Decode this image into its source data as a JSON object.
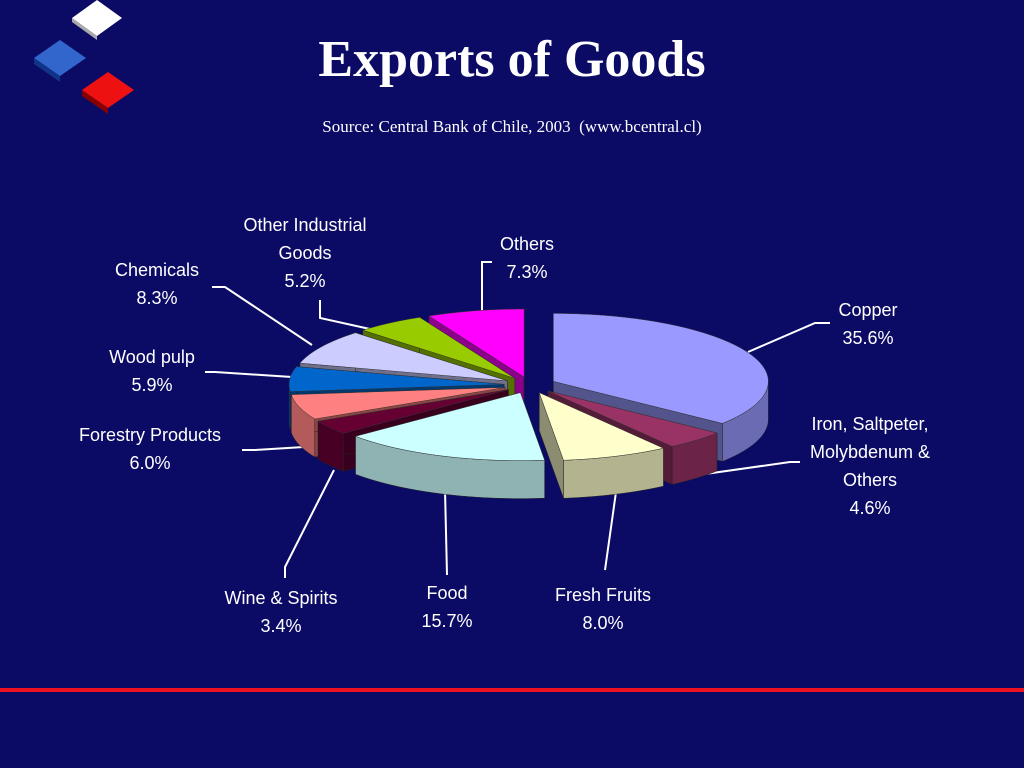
{
  "chart_data": {
    "type": "pie3d",
    "title": "Exports of Goods",
    "subtitle": "Source: Central Bank of Chile, 2003  (www.bcentral.cl)",
    "categories": [
      "Copper",
      "Iron, Saltpeter, Molybdenum & Others",
      "Fresh Fruits",
      "Food",
      "Wine & Spirits",
      "Forestry Products",
      "Wood pulp",
      "Chemicals",
      "Other Industrial Goods",
      "Others"
    ],
    "values": [
      35.6,
      4.6,
      8.0,
      15.7,
      3.4,
      6.0,
      5.9,
      8.3,
      5.2,
      7.3
    ],
    "value_labels": [
      "35.6%",
      "4.6%",
      "8.0%",
      "15.7%",
      "3.4%",
      "6.0%",
      "5.9%",
      "8.3%",
      "5.2%",
      "7.3%"
    ],
    "colors": [
      "#9999ff",
      "#993366",
      "#ffffcc",
      "#ccffff",
      "#660033",
      "#ff8080",
      "#0066cc",
      "#ccccff",
      "#99cc00",
      "#ff00ff"
    ]
  }
}
